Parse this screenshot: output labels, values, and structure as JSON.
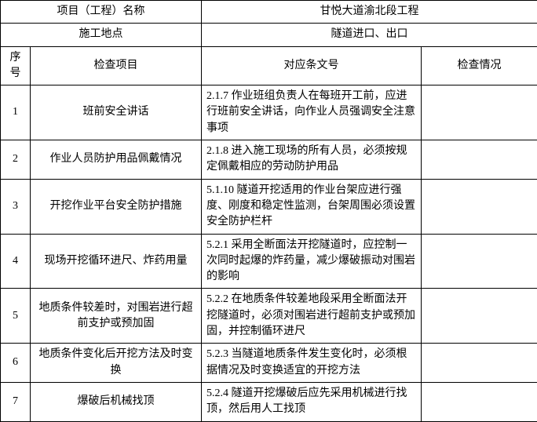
{
  "header": {
    "project_name_label": "项目（工程）名称",
    "project_name_value": "甘悦大道渝北段工程",
    "location_label": "施工地点",
    "location_value": "隧道进口、出口"
  },
  "columns": {
    "seq": "序号",
    "item": "检查项目",
    "clause": "对应条文号",
    "status": "检查情况"
  },
  "rows": [
    {
      "seq": "1",
      "item": "班前安全讲话",
      "clause": "2.1.7 作业班组负责人在每班开工前，应进行班前安全讲话，向作业人员强调安全注意事项",
      "status": ""
    },
    {
      "seq": "2",
      "item": "作业人员防护用品佩戴情况",
      "clause": "2.1.8 进入施工现场的所有人员，必须按规定佩戴相应的劳动防护用品",
      "status": ""
    },
    {
      "seq": "3",
      "item": "开挖作业平台安全防护措施",
      "clause": "5.1.10 隧道开挖适用的作业台架应进行强度、刚度和稳定性监测，台架周围必须设置安全防护栏杆",
      "status": ""
    },
    {
      "seq": "4",
      "item": "现场开挖循环进尺、炸药用量",
      "clause": "5.2.1 采用全断面法开挖隧道时，应控制一次同时起爆的炸药量，减少爆破振动对围岩的影响",
      "status": ""
    },
    {
      "seq": "5",
      "item": "地质条件较差时，对围岩进行超前支护或预加固",
      "clause": "5.2.2 在地质条件较差地段采用全断面法开挖隧道时，必须对围岩进行超前支护或预加固，并控制循环进尺",
      "status": ""
    },
    {
      "seq": "6",
      "item": "地质条件变化后开挖方法及时变换",
      "clause": "5.2.3 当隧道地质条件发生变化时，必须根据情况及时变换适宜的开挖方法",
      "status": ""
    },
    {
      "seq": "7",
      "item": "爆破后机械找顶",
      "clause": "5.2.4 隧道开挖爆破后应先采用机械进行找顶，然后用人工找顶",
      "status": ""
    }
  ]
}
